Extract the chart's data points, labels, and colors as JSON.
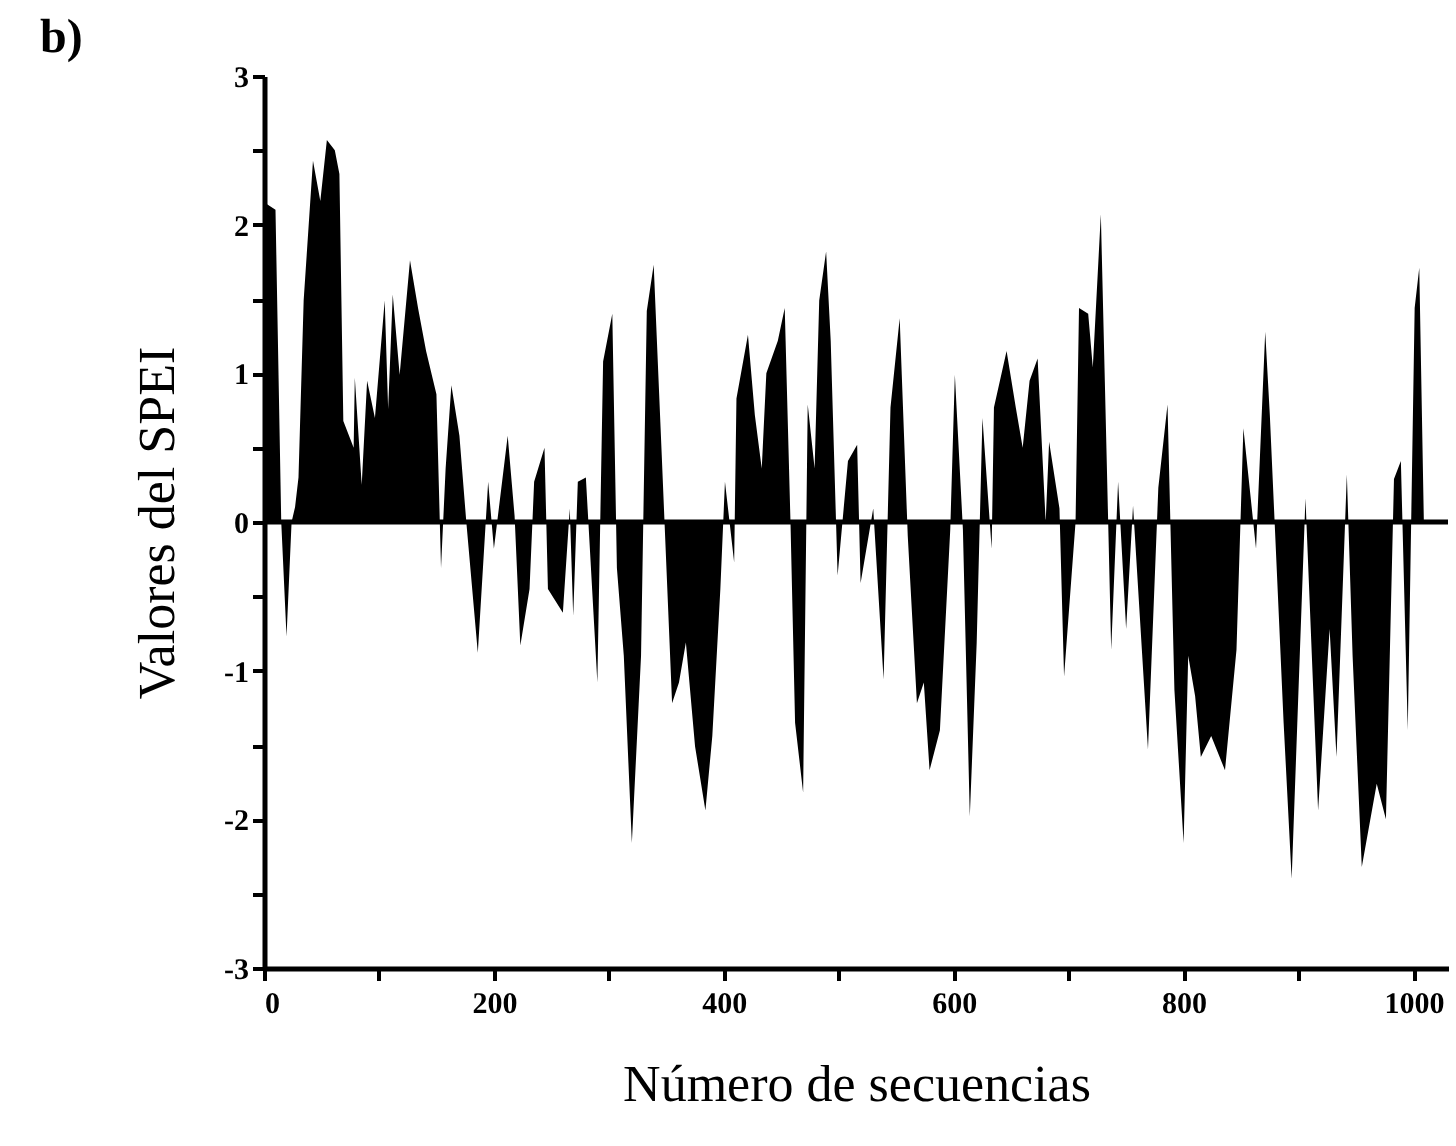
{
  "chart_data": {
    "type": "area",
    "title": "b)",
    "xlabel": "Número de secuencias",
    "ylabel": "Valores del SPEI",
    "x": [
      0,
      10,
      15,
      19.6,
      24,
      27,
      30,
      34.5,
      42.6,
      49,
      54.7,
      61.6,
      65.6,
      69,
      78,
      79,
      85,
      89.7,
      96.5,
      105,
      108,
      112,
      118,
      127,
      134,
      141,
      150,
      154,
      158,
      163,
      170,
      176,
      186,
      195,
      200,
      212,
      218,
      223,
      231,
      235,
      244,
      247,
      260,
      266,
      269,
      273,
      280,
      290,
      295,
      303,
      307,
      313,
      320,
      328,
      333,
      339,
      346,
      355,
      361,
      367,
      375,
      384,
      390,
      397,
      401,
      409,
      411,
      421,
      427,
      433,
      437,
      447,
      453,
      458,
      462,
      469,
      473,
      479,
      483,
      489,
      493,
      499,
      508,
      516,
      519,
      530,
      539,
      545,
      553,
      560,
      568,
      574,
      579,
      588,
      597,
      601,
      608,
      614,
      620,
      625,
      633,
      635,
      646,
      654,
      660,
      666,
      673,
      680,
      683,
      692,
      696,
      706,
      709,
      717,
      721,
      728,
      733,
      737,
      743,
      750,
      756,
      769,
      778,
      786,
      792,
      800,
      804,
      810,
      815,
      824,
      836,
      846,
      852,
      863,
      871,
      875,
      887,
      894,
      906,
      917,
      927,
      933,
      942,
      947,
      955,
      968,
      976,
      983,
      989,
      995,
      1001,
      1005,
      1009,
      1030
    ],
    "values": [
      2.15,
      2.1,
      0,
      -0.77,
      0,
      0.1,
      0.3,
      1.49,
      2.43,
      2.16,
      2.57,
      2.5,
      2.34,
      0.68,
      0.5,
      0.97,
      0.25,
      0.95,
      0.7,
      1.49,
      0.76,
      1.53,
      0.99,
      1.76,
      1.44,
      1.15,
      0.86,
      -0.31,
      0.36,
      0.92,
      0.58,
      0,
      -0.88,
      0.27,
      -0.18,
      0.58,
      0.04,
      -0.83,
      -0.45,
      0.27,
      0.5,
      -0.45,
      -0.61,
      0.09,
      -0.63,
      0.27,
      0.3,
      -1.08,
      1.08,
      1.4,
      -0.31,
      -0.9,
      -2.16,
      -0.9,
      1.42,
      1.73,
      0.45,
      -1.22,
      -1.08,
      -0.81,
      -1.51,
      -1.94,
      -1.44,
      -0.45,
      0.27,
      -0.27,
      0.83,
      1.26,
      0.72,
      0.36,
      1.0,
      1.22,
      1.44,
      0,
      -1.35,
      -1.82,
      0.79,
      0.36,
      1.49,
      1.82,
      1.22,
      -0.36,
      0.41,
      0.52,
      -0.41,
      0.09,
      -1.06,
      0.77,
      1.37,
      -0.09,
      -1.22,
      -1.08,
      -1.67,
      -1.4,
      -0.05,
      0.99,
      -0.05,
      -1.98,
      -0.81,
      0.7,
      -0.18,
      0.77,
      1.15,
      0.77,
      0.5,
      0.95,
      1.1,
      0,
      0.54,
      0.09,
      -1.04,
      0,
      1.44,
      1.4,
      1.04,
      2.07,
      0.45,
      -0.86,
      0.27,
      -0.72,
      0.11,
      -1.53,
      0.23,
      0.79,
      -1.13,
      -2.16,
      -0.9,
      -1.17,
      -1.58,
      -1.44,
      -1.67,
      -0.86,
      0.63,
      -0.18,
      1.28,
      0.72,
      -1.35,
      -2.4,
      0.16,
      -1.94,
      -0.72,
      -1.58,
      0.32,
      -0.9,
      -2.32,
      -1.76,
      -2.0,
      0.29,
      0.41,
      -1.4,
      1.44,
      1.71,
      0,
      0
    ],
    "color": "#000000",
    "xlim": [
      0,
      1030
    ],
    "xticks": [
      0,
      {
        "value": 100,
        "label": null
      },
      200,
      {
        "value": 300,
        "label": null
      },
      400,
      {
        "value": 500,
        "label": null
      },
      600,
      {
        "value": 700,
        "label": null
      },
      800,
      {
        "value": 900,
        "label": null
      },
      1000
    ],
    "ylim": [
      -3,
      3
    ],
    "yticks": [
      -3,
      {
        "value": -2.5,
        "label": null
      },
      -2,
      {
        "value": -1.5,
        "label": null
      },
      -1,
      {
        "value": -0.5,
        "label": null
      },
      0,
      {
        "value": 0.5,
        "label": null
      },
      1,
      {
        "value": 1.5,
        "label": null
      },
      2,
      {
        "value": 2.5,
        "label": null
      },
      3
    ],
    "ref_lines": [
      {
        "axis": "y",
        "value": 0,
        "color": "#000000"
      }
    ],
    "grid": false
  }
}
